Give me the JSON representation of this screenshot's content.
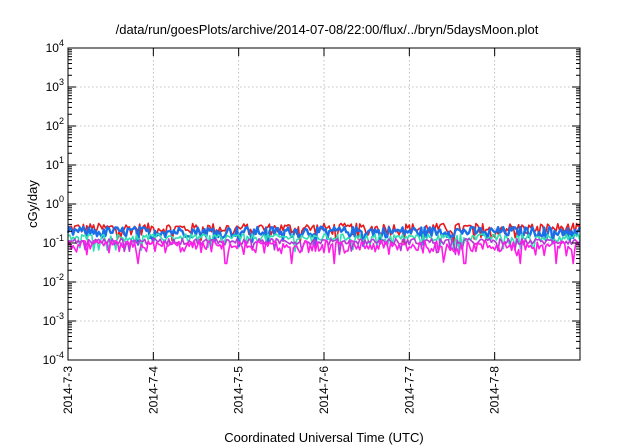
{
  "chart_data": {
    "type": "line",
    "title": "/data/run/goesPlots/archive/2014-07-08/22:00/flux/../bryn/5daysMoon.plot",
    "xlabel": "Coordinated Universal Time (UTC)",
    "ylabel": "cGy/day",
    "yscale": "log",
    "ylim": [
      0.0001,
      10000
    ],
    "xlim": [
      0,
      6
    ],
    "x_tick_labels": [
      "2014-7-3",
      "2014-7-4",
      "2014-7-5",
      "2014-7-6",
      "2014-7-7",
      "2014-7-8"
    ],
    "y_ticks": [
      {
        "base": "10",
        "exp": "4"
      },
      {
        "base": "10",
        "exp": "3"
      },
      {
        "base": "10",
        "exp": "2"
      },
      {
        "base": "10",
        "exp": "1"
      },
      {
        "base": "10",
        "exp": "0"
      },
      {
        "base": "10",
        "exp": "-1"
      },
      {
        "base": "10",
        "exp": "-2"
      },
      {
        "base": "10",
        "exp": "-3"
      },
      {
        "base": "10",
        "exp": "-4"
      }
    ],
    "grid": true,
    "series": [
      {
        "color": "#e8181b",
        "base": 0.24,
        "amp": 0.08,
        "dips": []
      },
      {
        "color": "#1a6ee8",
        "base": 0.2,
        "amp": 0.06,
        "dips": []
      },
      {
        "color": "#2ee0b0",
        "base": 0.14,
        "amp": 0.03,
        "dips": []
      },
      {
        "color": "#b23ad6",
        "base": 0.11,
        "amp": 0.02,
        "dips": []
      },
      {
        "color": "#ff1ee8",
        "base": 0.085,
        "amp": 0.03,
        "dips": [
          0.82,
          1.85,
          2.62,
          3.12,
          4.65,
          5.3,
          5.72,
          5.92
        ]
      }
    ]
  }
}
